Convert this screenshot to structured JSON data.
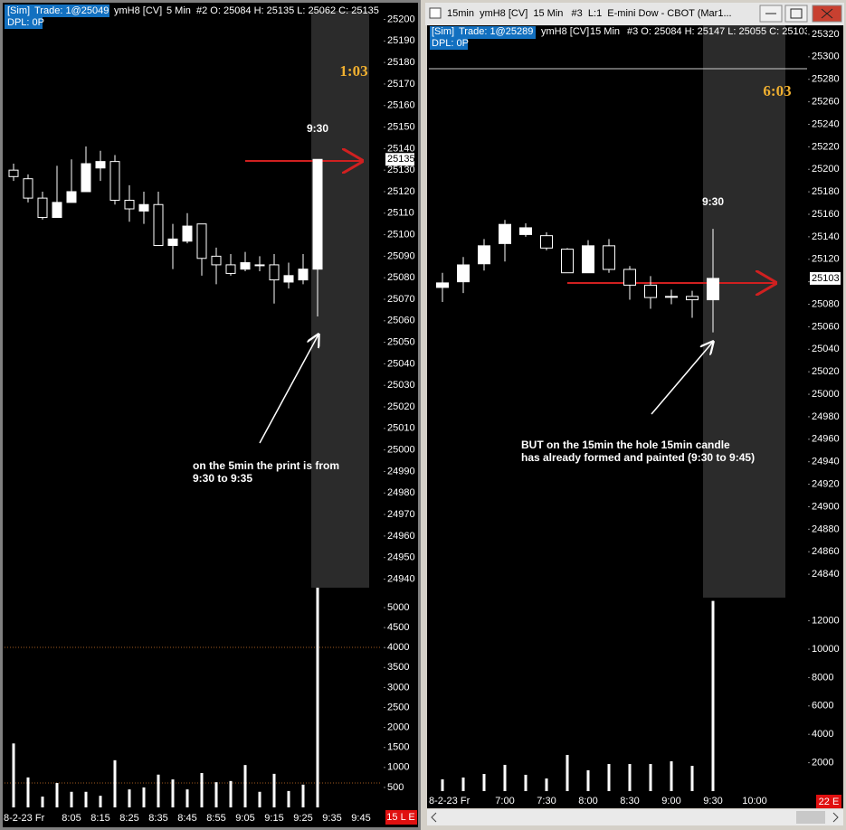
{
  "chart_data": [
    {
      "type": "candlestick",
      "header": [
        "[Sim]",
        "Trade: 1@25049",
        "ymH8 [CV]",
        "5 Min",
        "#2 O: 25084 H: 25135 L: 25062 C: 25135"
      ],
      "subheader": "DPL: 0P",
      "timer": "1:03",
      "bar_label": "9:30",
      "annotation": [
        "on the 5min the print is from",
        "9:30 to 9:35"
      ],
      "status": "15 L E",
      "categories": [
        "8-2-23 Fr",
        null,
        null,
        null,
        "8:05",
        null,
        "8:15",
        null,
        "8:25",
        null,
        "8:35",
        null,
        "8:45",
        null,
        "8:55",
        null,
        "9:05",
        null,
        "9:15",
        null,
        "9:25",
        null,
        "9:35",
        null,
        "9:45"
      ],
      "open": [
        25130,
        25126,
        25117,
        25108,
        25115,
        25120,
        25131,
        25134,
        25116,
        25111,
        25114,
        25095,
        25097,
        25105,
        25090,
        25086,
        25084,
        25086,
        25086,
        25078,
        25079,
        25084,
        null,
        null,
        null
      ],
      "high": [
        25133,
        25128,
        25120,
        25132,
        25135,
        25141,
        25139,
        25137,
        25123,
        25120,
        25120,
        25105,
        25110,
        25105,
        25094,
        25091,
        25092,
        25090,
        25091,
        25087,
        25091,
        25135,
        null,
        null,
        null
      ],
      "low": [
        25125,
        25115,
        25107,
        25108,
        25115,
        25120,
        25125,
        25114,
        25106,
        25105,
        25095,
        25084,
        25096,
        25081,
        25077,
        25081,
        25083,
        25083,
        25068,
        25075,
        25077,
        25062,
        null,
        null,
        null
      ],
      "close": [
        25127,
        25117,
        25108,
        25115,
        25120,
        25133,
        25134,
        25116,
        25112,
        25114,
        25095,
        25098,
        25104,
        25089,
        25086,
        25082,
        25087,
        25086,
        25079,
        25081,
        25084,
        25135,
        null,
        null,
        null
      ],
      "volume": [
        1600,
        750,
        270,
        610,
        390,
        390,
        290,
        1180,
        450,
        500,
        820,
        700,
        450,
        860,
        630,
        660,
        1060,
        390,
        840,
        410,
        570,
        12000,
        null,
        null,
        null
      ],
      "last_price": 25135,
      "ylim": [
        24936,
        25204
      ],
      "yticks": [
        24940,
        24950,
        24960,
        24970,
        24980,
        24990,
        25000,
        25010,
        25020,
        25030,
        25040,
        25050,
        25060,
        25070,
        25080,
        25090,
        25100,
        25110,
        25120,
        25130,
        25140,
        25150,
        25160,
        25170,
        25180,
        25190,
        25200
      ],
      "volume_ylim": [
        0,
        5385
      ],
      "volume_yticks": [
        500,
        1000,
        1500,
        2000,
        2500,
        3000,
        3500,
        4000,
        4500,
        5000
      ]
    },
    {
      "type": "candlestick",
      "title": "15min  ymH8 [CV]  15 Min   #3  L:1  E-mini Dow - CBOT (Mar1...",
      "header": [
        "[Sim]",
        "Trade: 1@25289",
        "ymH8 [CV]",
        "15 Min",
        "#3 O: 25084 H: 25147 L: 25055 C: 25103"
      ],
      "subheader": "DPL: 0P",
      "timer": "6:03",
      "bar_label": "9:30",
      "annotation": [
        "BUT on the 15min the hole 15min candle",
        "has already formed and painted (9:30 to 9:45)"
      ],
      "status": "22 E",
      "categories": [
        "8-2-23 Fr",
        null,
        null,
        "7:00",
        null,
        "7:30",
        null,
        "8:00",
        null,
        "8:30",
        null,
        "9:00",
        null,
        "9:30",
        null,
        "10:00"
      ],
      "open": [
        25095,
        25100,
        25116,
        25134,
        25142,
        25141,
        25129,
        25108,
        25132,
        25111,
        25097,
        25087,
        25087,
        25084,
        null,
        null
      ],
      "high": [
        25108,
        25122,
        25138,
        25155,
        25152,
        25144,
        25130,
        25137,
        25138,
        25114,
        25105,
        25093,
        25092,
        25147,
        null,
        null
      ],
      "low": [
        25082,
        25090,
        25110,
        25118,
        25140,
        25128,
        25108,
        25108,
        25108,
        25084,
        25076,
        25080,
        25068,
        25055,
        null,
        null
      ],
      "close": [
        25099,
        25115,
        25132,
        25151,
        25148,
        25130,
        25108,
        25132,
        25111,
        25097,
        25086,
        25087,
        25084,
        25103,
        null,
        null
      ],
      "volume": [
        830,
        960,
        1210,
        1850,
        1150,
        890,
        2550,
        1470,
        1910,
        1910,
        1910,
        2100,
        1780,
        13400,
        null,
        null
      ],
      "last_price": 25103,
      "ylim": [
        24820,
        25328
      ],
      "yticks": [
        24840,
        24860,
        24880,
        24900,
        24920,
        24940,
        24960,
        24980,
        25000,
        25020,
        25040,
        25060,
        25080,
        25100,
        25120,
        25140,
        25160,
        25180,
        25200,
        25220,
        25240,
        25260,
        25280,
        25300,
        25320
      ],
      "volume_ylim": [
        0,
        13630
      ],
      "volume_yticks": [
        2000,
        4000,
        6000,
        8000,
        10000,
        12000
      ]
    }
  ]
}
